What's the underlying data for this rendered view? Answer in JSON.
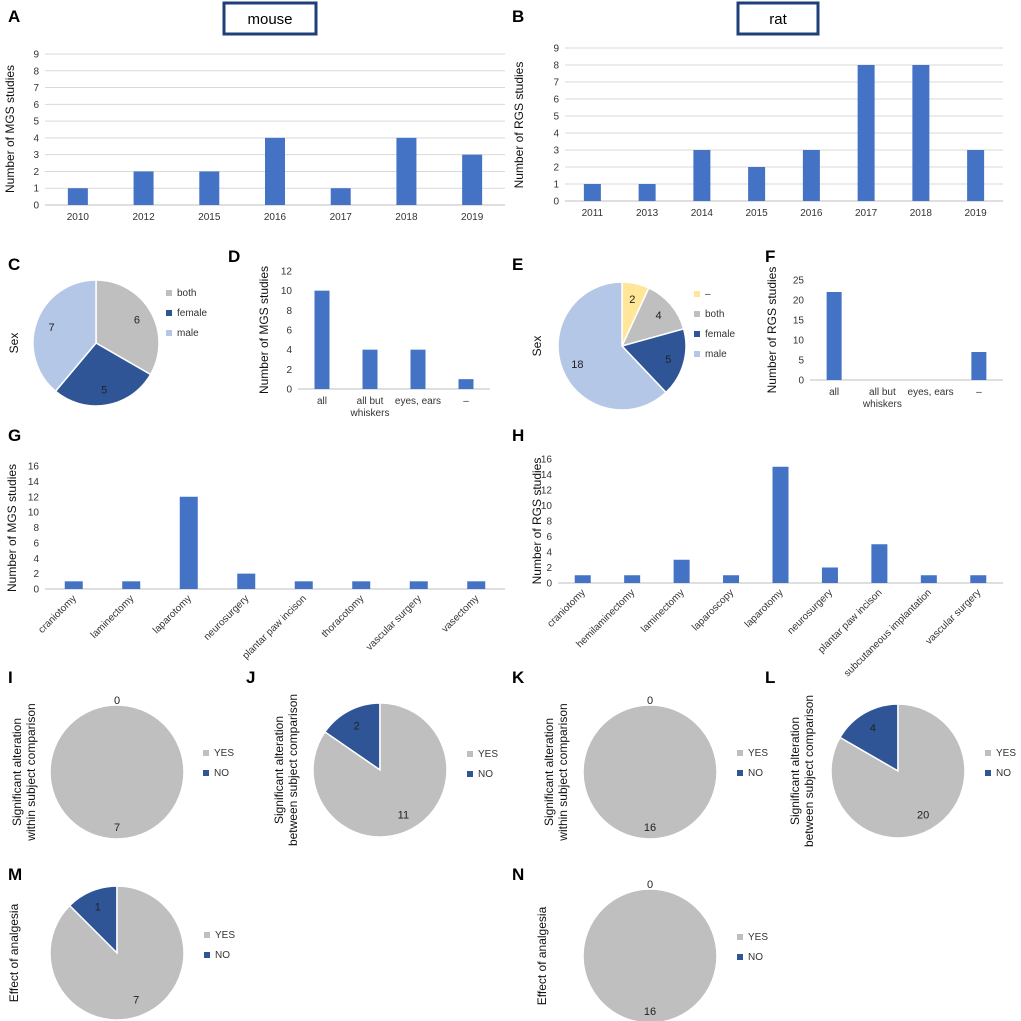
{
  "species_labels": [
    "mouse",
    "rat"
  ],
  "colors": {
    "bar": "#4472C4",
    "grid": "#d9d9d9",
    "both": "#bfbfbf",
    "female": "#2F5597",
    "male": "#B4C7E7",
    "dash": "#FFE699",
    "yes": "#bfbfbf",
    "no": "#2F5597",
    "box": "#1F3F7A"
  },
  "chart_data": [
    {
      "panel": "A",
      "type": "bar",
      "ylabel": "Number of  MGS studies",
      "categories": [
        "2010",
        "2012",
        "2015",
        "2016",
        "2017",
        "2018",
        "2019"
      ],
      "values": [
        1,
        2,
        2,
        4,
        1,
        4,
        3
      ],
      "ylim": [
        0,
        9
      ],
      "yticks": [
        0,
        1,
        2,
        3,
        4,
        5,
        6,
        7,
        8,
        9
      ],
      "grid": true
    },
    {
      "panel": "B",
      "type": "bar",
      "ylabel": "Number of  RGS studies",
      "categories": [
        "2011",
        "2013",
        "2014",
        "2015",
        "2016",
        "2017",
        "2018",
        "2019"
      ],
      "values": [
        1,
        1,
        3,
        2,
        3,
        8,
        8,
        3
      ],
      "ylim": [
        0,
        9
      ],
      "yticks": [
        0,
        1,
        2,
        3,
        4,
        5,
        6,
        7,
        8,
        9
      ],
      "grid": true
    },
    {
      "panel": "C",
      "type": "pie",
      "ylabel": "Sex",
      "labels": [
        "both",
        "female",
        "male"
      ],
      "values": [
        6,
        5,
        7
      ]
    },
    {
      "panel": "D",
      "type": "bar",
      "ylabel": "Number of  MGS studies",
      "categories": [
        "all",
        "all but\nwhiskers",
        "eyes, ears",
        "–"
      ],
      "values": [
        10,
        4,
        4,
        1
      ],
      "ylim": [
        0,
        12
      ],
      "yticks": [
        0,
        2,
        4,
        6,
        8,
        10,
        12
      ],
      "grid": false
    },
    {
      "panel": "E",
      "type": "pie",
      "ylabel": "Sex",
      "labels": [
        "–",
        "both",
        "female",
        "male"
      ],
      "values": [
        2,
        4,
        5,
        18
      ]
    },
    {
      "panel": "F",
      "type": "bar",
      "ylabel": "Number of  RGS studies",
      "categories": [
        "all",
        "all but\nwhiskers",
        "eyes, ears",
        "–"
      ],
      "values": [
        22,
        0,
        0,
        7
      ],
      "ylim": [
        0,
        25
      ],
      "yticks": [
        0,
        5,
        10,
        15,
        20,
        25
      ],
      "grid": false
    },
    {
      "panel": "G",
      "type": "bar",
      "ylabel": "Number of  MGS studies",
      "categories": [
        "craniotomy",
        "laminectomy",
        "laparotomy",
        "neurosurgery",
        "plantar paw incison",
        "thoracotomy",
        "vascular surgery",
        "vasectomy"
      ],
      "values": [
        1,
        1,
        12,
        2,
        1,
        1,
        1,
        1
      ],
      "ylim": [
        0,
        16
      ],
      "yticks": [
        0,
        2,
        4,
        6,
        8,
        10,
        12,
        14,
        16
      ],
      "grid": false
    },
    {
      "panel": "H",
      "type": "bar",
      "ylabel": "Number of  RGS studies",
      "categories": [
        "craniotomy",
        "hemilaminectomy",
        "laminectomy",
        "laparoscopy",
        "laparotomy",
        "neurosurgery",
        "plantar paw incison",
        "subcutaneous implantation",
        "vascular surgery"
      ],
      "values": [
        1,
        1,
        3,
        1,
        15,
        2,
        5,
        1,
        1
      ],
      "ylim": [
        0,
        16
      ],
      "yticks": [
        0,
        2,
        4,
        6,
        8,
        10,
        12,
        14,
        16
      ],
      "grid": false
    },
    {
      "panel": "I",
      "type": "pie",
      "ylabel": "Significant alteration\nwithin subject comparison",
      "labels": [
        "YES",
        "NO"
      ],
      "values": [
        7,
        0
      ]
    },
    {
      "panel": "J",
      "type": "pie",
      "ylabel": "Significant alteration\nbetween subject comparison",
      "labels": [
        "YES",
        "NO"
      ],
      "values": [
        11,
        2
      ]
    },
    {
      "panel": "K",
      "type": "pie",
      "ylabel": "Significant alteration\nwithin subject comparison",
      "labels": [
        "YES",
        "NO"
      ],
      "values": [
        16,
        0
      ]
    },
    {
      "panel": "L",
      "type": "pie",
      "ylabel": "Significant alteration\nbetween subject comparison",
      "labels": [
        "YES",
        "NO"
      ],
      "values": [
        20,
        4
      ]
    },
    {
      "panel": "M",
      "type": "pie",
      "ylabel": "Effect of analgesia",
      "labels": [
        "YES",
        "NO"
      ],
      "values": [
        7,
        1
      ]
    },
    {
      "panel": "N",
      "type": "pie",
      "ylabel": "Effect of analgesia",
      "labels": [
        "YES",
        "NO"
      ],
      "values": [
        16,
        0
      ]
    }
  ]
}
